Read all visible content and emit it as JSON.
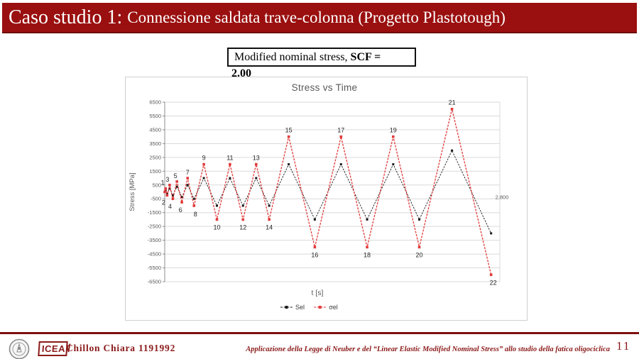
{
  "slide": {
    "title_prefix": "Caso studio 1: ",
    "title_rest": "Connessione saldata trave-colonna (Progetto Plastotough)"
  },
  "annotation": {
    "line1_regular": "Modified nominal stress, ",
    "line1_bold": "SCF =",
    "line2_bold": "2.00"
  },
  "chart_data": {
    "type": "line",
    "title": "Stress vs Time",
    "xlabel": "t [s]",
    "ylabel": "Stress [MPa]",
    "xlim": [
      0,
      2800
    ],
    "ylim": [
      -6500,
      6500
    ],
    "y_tick_step": 1000,
    "y_tick_labels": [
      "6500",
      "5500",
      "4500",
      "3500",
      "2500",
      "1500",
      "500",
      "-500",
      "-1500",
      "-2500",
      "-3500",
      "-4500",
      "-5500",
      "-6500"
    ],
    "x_tick": {
      "value": 2800,
      "label": "2.800"
    },
    "grid": true,
    "legend_position": "bottom-center",
    "x": [
      0,
      7,
      20,
      41,
      68,
      102,
      143,
      191,
      245,
      327,
      436,
      545,
      654,
      764,
      873,
      1036,
      1254,
      1473,
      1691,
      1909,
      2127,
      2400,
      2727
    ],
    "series": [
      {
        "name": "Sel",
        "color": "#1a1a1a",
        "dash": "2.4,1.6",
        "width": 0.9,
        "marker": 3.0,
        "values": [
          0,
          125,
          -125,
          250,
          -250,
          375,
          -375,
          500,
          -500,
          1000,
          -1000,
          1000,
          -1000,
          1000,
          -1000,
          2000,
          -2000,
          2000,
          -2000,
          2000,
          -2000,
          3000,
          -3000
        ]
      },
      {
        "name": "σel",
        "color": "#e23b3b",
        "dash": "3,1.6",
        "width": 1.3,
        "marker": 3.6,
        "values": [
          0,
          250,
          -250,
          500,
          -500,
          750,
          -750,
          1000,
          -1000,
          2000,
          -2000,
          2000,
          -2000,
          2000,
          -2000,
          4000,
          -4000,
          4000,
          -4000,
          4000,
          -4000,
          6000,
          -6000
        ]
      }
    ],
    "point_labels": [
      "1",
      "2",
      "3",
      "4",
      "5",
      "6",
      "7",
      "8",
      "9",
      "10",
      "11",
      "12",
      "13",
      "14",
      "15",
      "16",
      "17",
      "18",
      "19",
      "20",
      "21",
      "22"
    ]
  },
  "footer": {
    "logo_text": "ICEA",
    "logo_slash": "/",
    "seal_icon": "university-seal",
    "author": "Chillon Chiara 1191992",
    "thesis_title": "Applicazione della Legge di Neuber e del “Linear Elastic Modified Nominal Stress” allo studio della fatica oligociclica",
    "page_number": "11"
  },
  "colors": {
    "header_bg": "#9a0f0f",
    "footer_red": "#8b1a1a",
    "series_sel": "#1a1a1a",
    "series_sigma_el": "#e23b3b",
    "grid": "#dadada",
    "axis_text": "#595959"
  }
}
